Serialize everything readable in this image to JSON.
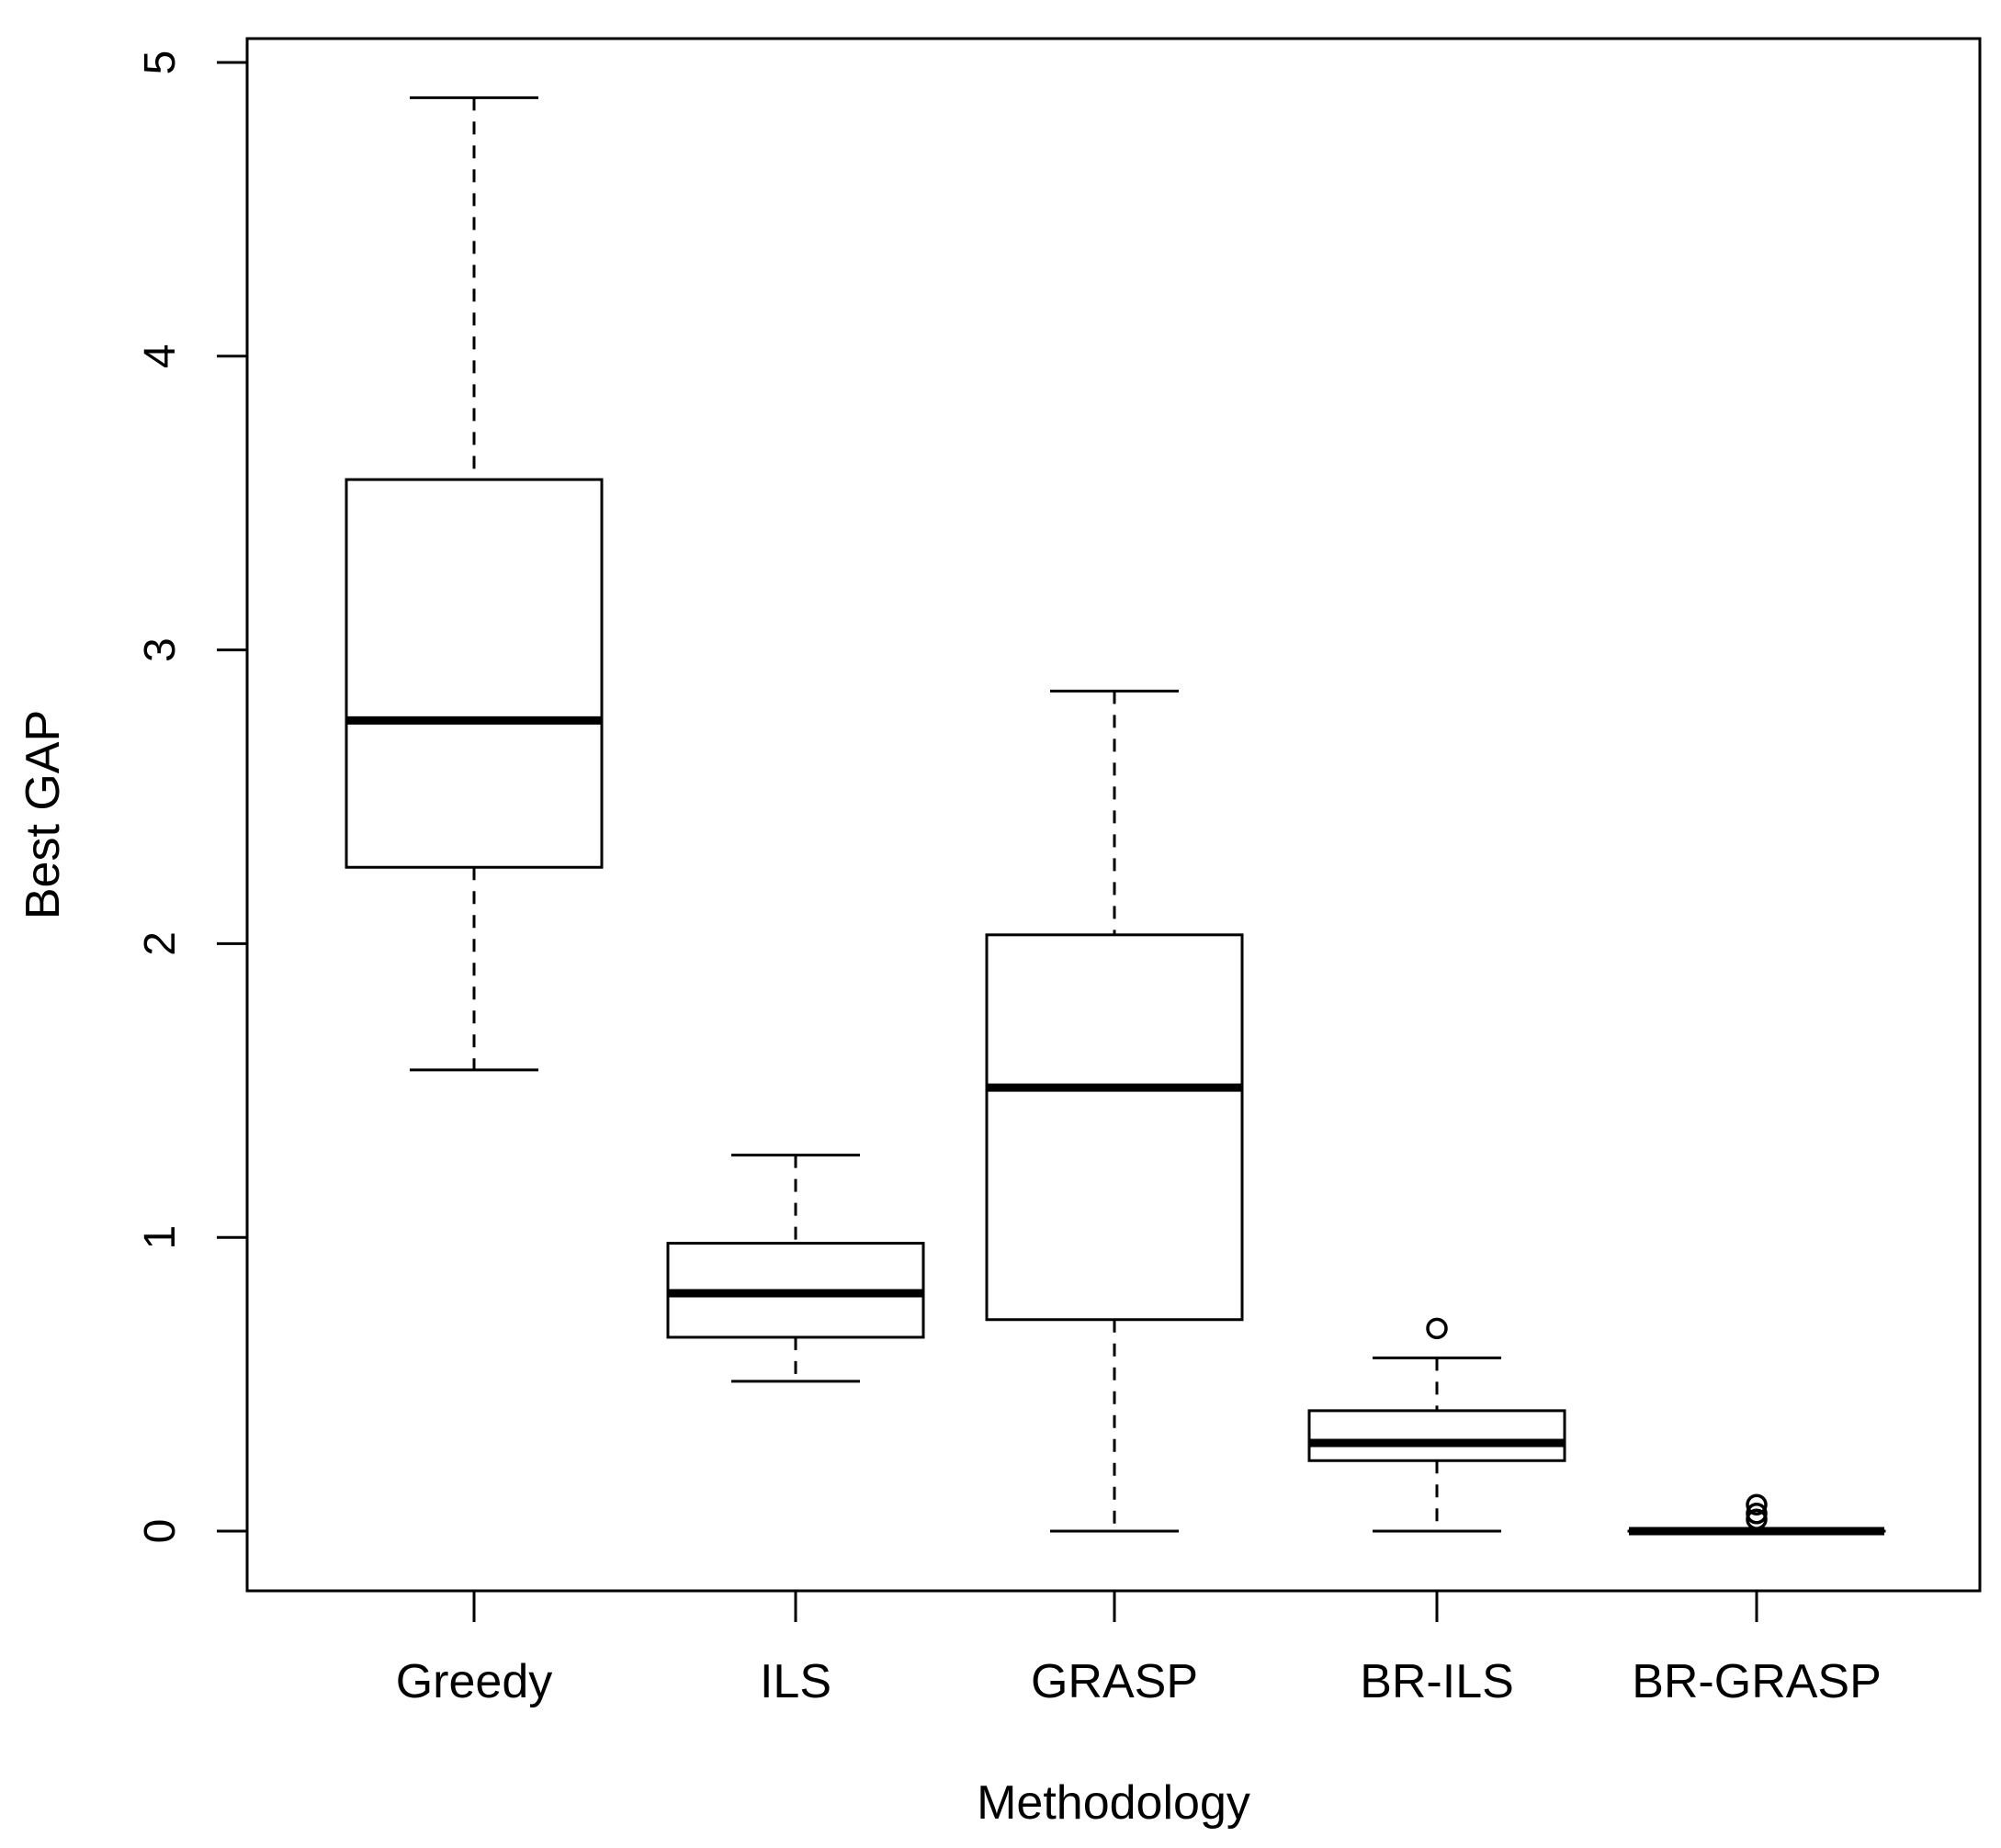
{
  "chart_data": {
    "type": "boxplot",
    "title": "",
    "xlabel": "Methodology",
    "ylabel": "Best GAP",
    "ylim": [
      -0.2,
      5.08
    ],
    "yticks": [
      0,
      1,
      2,
      3,
      4,
      5
    ],
    "ytick_labels": [
      "0",
      "1",
      "2",
      "3",
      "4",
      "5"
    ],
    "grid": false,
    "categories": [
      "Greedy",
      "ILS",
      "GRASP",
      "BR-ILS",
      "BR-GRASP"
    ],
    "boxes": [
      {
        "name": "Greedy",
        "whisker_low": 1.57,
        "q1": 2.26,
        "median": 2.76,
        "q3": 3.58,
        "whisker_high": 4.88,
        "outliers": []
      },
      {
        "name": "ILS",
        "whisker_low": 0.51,
        "q1": 0.66,
        "median": 0.81,
        "q3": 0.98,
        "whisker_high": 1.28,
        "outliers": []
      },
      {
        "name": "GRASP",
        "whisker_low": 0.0,
        "q1": 0.72,
        "median": 1.51,
        "q3": 2.03,
        "whisker_high": 2.86,
        "outliers": []
      },
      {
        "name": "BR-ILS",
        "whisker_low": 0.0,
        "q1": 0.24,
        "median": 0.3,
        "q3": 0.41,
        "whisker_high": 0.59,
        "outliers": [
          0.69
        ]
      },
      {
        "name": "BR-GRASP",
        "whisker_low": 0.0,
        "q1": 0.0,
        "median": 0.0,
        "q3": 0.0,
        "whisker_high": 0.0,
        "outliers": [
          0.04,
          0.06,
          0.09
        ]
      }
    ]
  }
}
